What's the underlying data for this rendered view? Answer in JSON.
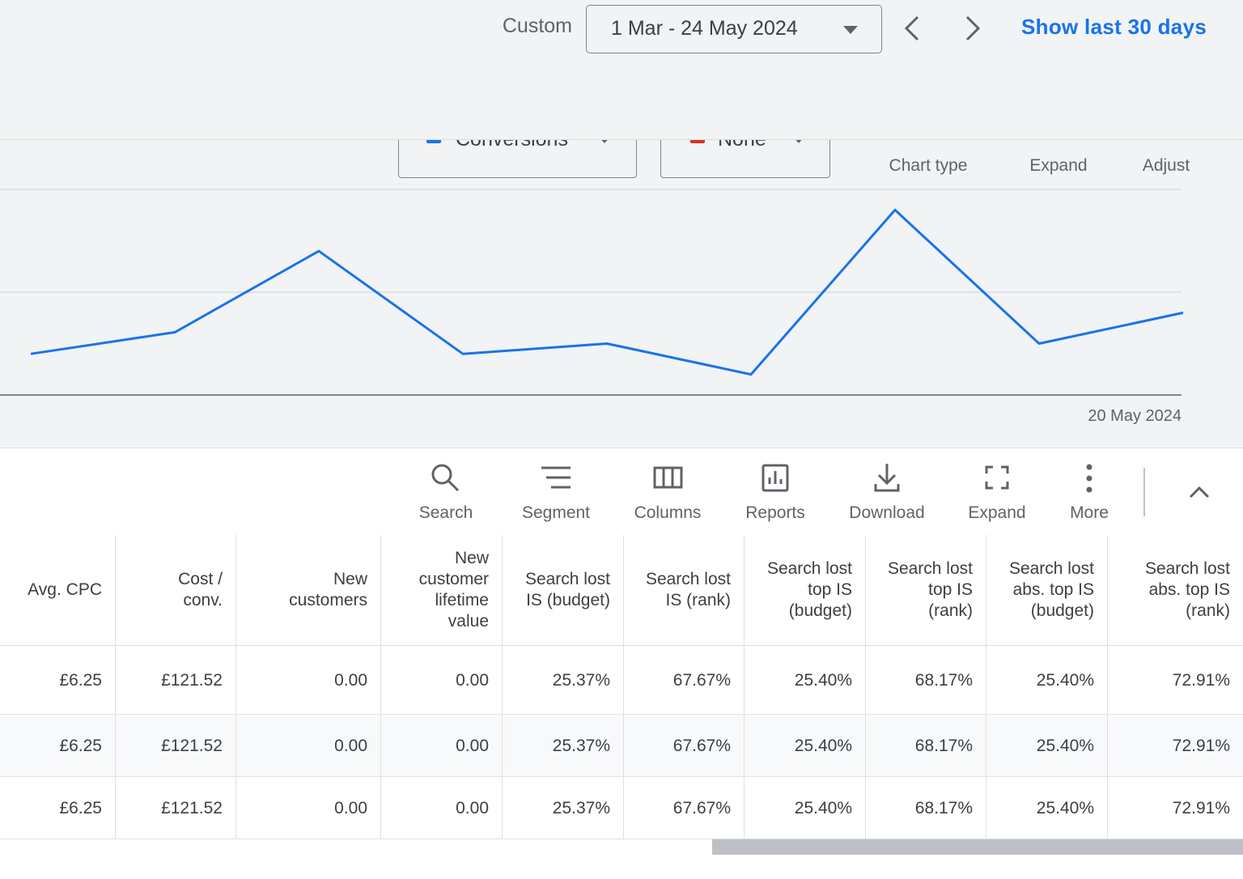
{
  "header": {
    "range_label": "Custom",
    "date_range": "1 Mar - 24 May 2024",
    "show_last": "Show last 30 days"
  },
  "chart_controls": {
    "metric_2": "None",
    "buttons": [
      "Chart type",
      "Expand",
      "Adjust"
    ]
  },
  "chart_data": {
    "type": "line",
    "x_end_label": "20 May 2024",
    "ylim": [
      0,
      2
    ],
    "series": [
      {
        "name": "Conversions",
        "color": "#1a73e8",
        "values": [
          0.4,
          0.61,
          1.4,
          0.4,
          0.5,
          0.2,
          1.8,
          0.5,
          0.8
        ]
      }
    ]
  },
  "toolbar": [
    "Search",
    "Segment",
    "Columns",
    "Reports",
    "Download",
    "Expand",
    "More"
  ],
  "table": {
    "columns": [
      "Avg. CPC",
      "Cost /\nconv.",
      "New\ncustomers",
      "New\ncustomer\nlifetime\nvalue",
      "Search lost\nIS (budget)",
      "Search lost\nIS (rank)",
      "Search lost\ntop IS\n(budget)",
      "Search lost\ntop IS\n(rank)",
      "Search lost\nabs. top IS\n(budget)",
      "Search lost\nabs. top IS\n(rank)"
    ],
    "rows": [
      [
        "£6.25",
        "£121.52",
        "0.00",
        "0.00",
        "25.37%",
        "67.67%",
        "25.40%",
        "68.17%",
        "25.40%",
        "72.91%"
      ],
      [
        "£6.25",
        "£121.52",
        "0.00",
        "0.00",
        "25.37%",
        "67.67%",
        "25.40%",
        "68.17%",
        "25.40%",
        "72.91%"
      ],
      [
        "£6.25",
        "£121.52",
        "0.00",
        "0.00",
        "25.37%",
        "67.67%",
        "25.40%",
        "68.17%",
        "25.40%",
        "72.91%"
      ]
    ]
  }
}
